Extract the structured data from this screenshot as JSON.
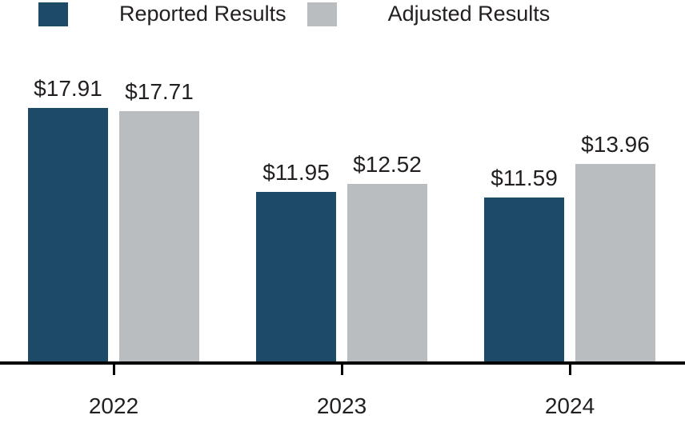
{
  "chart_data": {
    "type": "bar",
    "title": "",
    "categories": [
      "2022",
      "2023",
      "2024"
    ],
    "series": [
      {
        "name": "Reported Results",
        "color": "#1d4a66",
        "values": [
          17.91,
          11.95,
          11.59
        ],
        "labels": [
          "$17.91",
          "$11.95",
          "$11.59"
        ]
      },
      {
        "name": "Adjusted Results",
        "color": "#babdbf",
        "values": [
          17.71,
          12.52,
          13.96
        ],
        "labels": [
          "$17.71",
          "$12.52",
          "$13.96"
        ]
      }
    ],
    "xlabel": "",
    "ylabel": "",
    "ylim": [
      0,
      18
    ],
    "grid": false,
    "legend_position": "top-left",
    "background_color": "#ffffff",
    "text_color": "#231f20",
    "axis_color": "#000000"
  }
}
